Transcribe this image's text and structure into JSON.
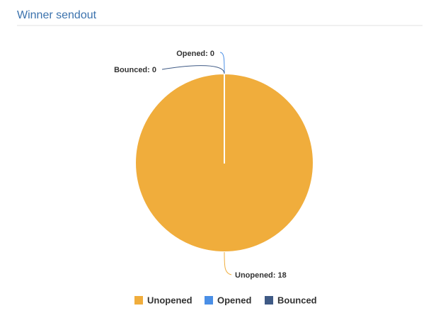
{
  "chart_data": {
    "type": "pie",
    "title": "Winner sendout",
    "categories": [
      "Unopened",
      "Opened",
      "Bounced"
    ],
    "values": [
      18,
      0,
      0
    ],
    "value_labels": [
      "Unopened: 18",
      "Opened: 0",
      "Bounced: 0"
    ],
    "colors": [
      "#f0ad3c",
      "#4a8fe6",
      "#3f5a85"
    ],
    "legend": "bottom"
  }
}
